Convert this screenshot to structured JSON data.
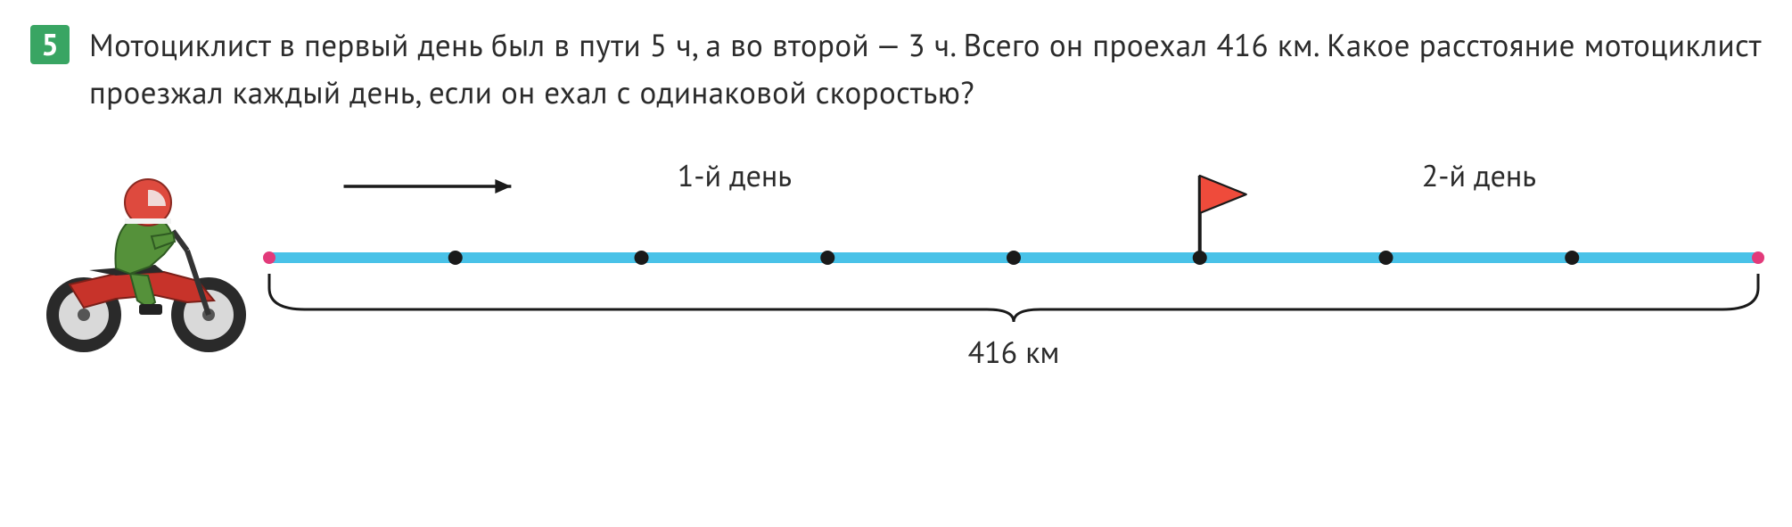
{
  "problem": {
    "number": "5",
    "text": "Мотоциклист в первый день был в пути 5 ч, а во второй — 3 ч. Всего он проехал 416 км. Какое расстояние мотоциклист проезжал каждый день, если он ехал с одинаковой скоростью?"
  },
  "diagram": {
    "day1_label": "1-й день",
    "day2_label": "2-й день",
    "distance_label": "416 км",
    "segments_total": 8,
    "day1_segments": 5,
    "colors": {
      "line": "#49c2e8",
      "dot": "#1a1a1a",
      "endpoint": "#e23a7a",
      "flag_fill": "#ef4b3b",
      "flag_stroke": "#1a1a1a",
      "text": "#2b2b2b",
      "arrow": "#1a1a1a",
      "brace": "#1a1a1a",
      "badge_bg": "#39a563",
      "moto_body": "#c7332a",
      "moto_rider_suit": "#55913a",
      "moto_helmet": "#de4a3e",
      "moto_tire": "#2a2a2a",
      "moto_rim": "#d9d9d9"
    },
    "font_size_label": 34,
    "font_size_distance": 34,
    "line_width": 12,
    "dot_radius": 8,
    "endpoint_radius": 7,
    "flag_width": 52,
    "flag_height": 42
  }
}
